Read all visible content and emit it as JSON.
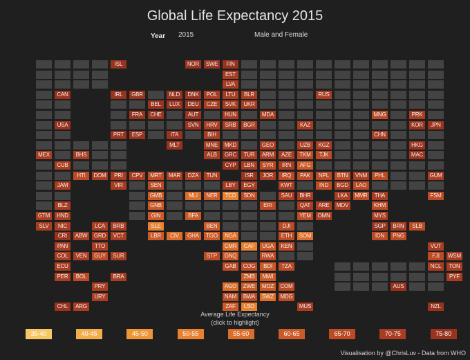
{
  "title": "Global Life Expectancy 2015",
  "filters": {
    "year_label": "Year",
    "year_value": "2015",
    "gender_value": "Male and Female"
  },
  "legend": {
    "title_line1": "Average Life Expectancy",
    "title_line2": "(click to highlight)",
    "items": [
      {
        "label": "35-40",
        "color": "#f7c766"
      },
      {
        "label": "40-45",
        "color": "#f3ad4a"
      },
      {
        "label": "45-50",
        "color": "#ee9536"
      },
      {
        "label": "50-55",
        "color": "#e88130"
      },
      {
        "label": "55-60",
        "color": "#dd6e2a"
      },
      {
        "label": "60-65",
        "color": "#cc5a28"
      },
      {
        "label": "65-70",
        "color": "#bb4a25"
      },
      {
        "label": "70-75",
        "color": "#a93d21"
      },
      {
        "label": "75-80",
        "color": "#9a331d"
      }
    ]
  },
  "credit": "Visualisation by @ChrisLuv - Data from WHO",
  "rows": [
    [
      "",
      "",
      "",
      "",
      "ISL:8",
      "",
      "",
      "",
      "NOR:8",
      "SWE:8",
      "FIN:8",
      "",
      "",
      "",
      "",
      "",
      "",
      "",
      "",
      "",
      "",
      "",
      ""
    ],
    [
      "",
      "",
      "",
      "",
      "",
      "",
      "",
      "",
      "",
      "",
      "EST:7",
      "",
      "",
      "",
      "",
      "",
      "",
      "",
      "",
      "",
      "",
      "",
      ""
    ],
    [
      "",
      "",
      "",
      "",
      "",
      "",
      "",
      "",
      "",
      "",
      "LVA:7",
      "",
      "",
      "",
      "",
      "",
      "",
      "",
      "",
      "",
      "",
      "",
      ""
    ],
    [
      "",
      "CAN:8",
      "",
      "",
      "IRL:8",
      "GBR:8",
      "",
      "NLD:8",
      "DNK:8",
      "POL:7",
      "LTU:7",
      "BLR:7",
      "",
      "",
      "",
      "RUS:7",
      "",
      "",
      "",
      "",
      "",
      "",
      ""
    ],
    [
      "",
      "",
      "",
      "",
      "",
      "",
      "BEL:8",
      "LUX:8",
      "DEU:8",
      "CZE:7",
      "SVK:7",
      "UKR:7",
      "",
      "",
      "",
      "",
      "",
      "",
      "",
      "",
      "",
      "",
      ""
    ],
    [
      "",
      "",
      "",
      "",
      "",
      "FRA:8",
      "CHE:8",
      "",
      "AUT:8",
      "",
      "HUN:7",
      "",
      "MDA:7",
      "",
      "",
      "",
      "",
      "",
      "MNG:6",
      "",
      "PRK:7",
      "",
      ""
    ],
    [
      "",
      "USA:8",
      "",
      "",
      "",
      "",
      "",
      "",
      "SVN:8",
      "HRV:7",
      "SRB:7",
      "BGR:7",
      "",
      "",
      "KAZ:7",
      "",
      "",
      "",
      "",
      "",
      "KOR:8",
      "JPN:8",
      ""
    ],
    [
      "",
      "",
      "",
      "",
      "PRT:8",
      "ESP:8",
      "",
      "ITA:8",
      "",
      "BIH:7",
      "",
      "",
      "",
      "",
      "",
      "",
      "",
      "",
      "CHN:7",
      "",
      "",
      "",
      ""
    ],
    [
      "",
      "",
      "",
      "",
      "",
      "",
      "",
      "MLT:8",
      "",
      "MNE:7",
      "MKD:7",
      "",
      "GEO:7",
      "",
      "UZB:7",
      "KGZ:7",
      "",
      "",
      "",
      "",
      "HKG:8",
      "",
      ""
    ],
    [
      "MEX:7",
      "",
      "BHS:7",
      "",
      "",
      "",
      "",
      "",
      "",
      "ALB:7",
      "GRC:8",
      "TUR:7",
      "ARM:7",
      "AZE:7",
      "TKM:6",
      "TJK:6",
      "",
      "",
      "",
      "",
      "MAC:8",
      "",
      ""
    ],
    [
      "",
      "CUB:7",
      "",
      "",
      "",
      "",
      "",
      "",
      "",
      "",
      "CYP:8",
      "LBN:7",
      "SYR:6",
      "IRN:7",
      "AFG:5",
      "",
      "",
      "",
      "",
      "",
      "",
      "",
      ""
    ],
    [
      "",
      "",
      "HTI:6",
      "DOM:7",
      "PRI:7",
      "CPV:7",
      "MRT:6",
      "MAR:7",
      "DZA:7",
      "TUN:7",
      "",
      "ISR:8",
      "JOR:7",
      "IRQ:6",
      "PAK:6",
      "NPL:6",
      "BTN:6",
      "VNM:7",
      "PHL:6",
      "",
      "",
      "GUM:7",
      ""
    ],
    [
      "",
      "JAM:7",
      "",
      "",
      "VIR:7",
      "",
      "SEN:6",
      "",
      "",
      "",
      "LBY:7",
      "EGY:7",
      "",
      "KWT:7",
      "",
      "IND:6",
      "BGD:7",
      "LAO:6",
      "",
      "",
      "",
      "",
      ""
    ],
    [
      "",
      "",
      "",
      "",
      "",
      "",
      "GMB:5",
      "",
      "MLI:4",
      "NER:5",
      "TCD:3",
      "SDN:6",
      "",
      "SAU:7",
      "BHR:7",
      "",
      "LKA:7",
      "MMR:6",
      "THA:7",
      "",
      "",
      "FSM:6",
      ""
    ],
    [
      "",
      "BLZ:7",
      "",
      "",
      "",
      "",
      "GNB:5",
      "",
      "",
      "",
      "",
      "",
      "ERI:6",
      "",
      "QAT:7",
      "ARE:7",
      "MDV:7",
      "",
      "KHM:6",
      "",
      "",
      "",
      ""
    ],
    [
      "GTM:7",
      "HND:7",
      "",
      "",
      "",
      "",
      "GIN:5",
      "",
      "BFA:5",
      "",
      "",
      "",
      "",
      "",
      "YEM:6",
      "OMN:7",
      "",
      "",
      "MYS:7",
      "",
      "",
      "",
      ""
    ],
    [
      "SLV:7",
      "NIC:7",
      "",
      "LCA:7",
      "BRB:7",
      "",
      "SLE:3",
      "",
      "",
      "BEN:5",
      "",
      "",
      "",
      "DJI:6",
      "",
      "",
      "",
      "",
      "SGP:8",
      "BRN:7",
      "SLB:6",
      "",
      ""
    ],
    [
      "",
      "CRI:8",
      "ABW:7",
      "GRD:7",
      "VCT:7",
      "",
      "LBR:5",
      "CIV:4",
      "GHA:5",
      "TGO:5",
      "NGA:4",
      "",
      "",
      "ETH:6",
      "SOM:4",
      "",
      "",
      "",
      "IDN:6",
      "PNG:6",
      "",
      "",
      ""
    ],
    [
      "",
      "PAN:7",
      "",
      "TTO:7",
      "",
      "",
      "",
      "",
      "",
      "",
      "CMR:4",
      "CAF:3",
      "UGA:5",
      "KEN:6",
      "",
      "",
      "",
      "",
      "",
      "",
      "",
      "VUT:7",
      ""
    ],
    [
      "",
      "COL:7",
      "VEN:7",
      "GUY:6",
      "SUR:7",
      "",
      "",
      "",
      "",
      "STP:6",
      "GNQ:5",
      "",
      "RWA:6",
      "",
      "",
      "",
      "",
      "",
      "",
      "",
      "",
      "FJI:6",
      "WSM:7"
    ],
    [
      "",
      "ECU:7",
      "",
      "",
      "",
      "",
      "",
      "",
      "",
      "",
      "GAB:6",
      "COG:6",
      "BDI:5",
      "TZA:6",
      "",
      "",
      "",
      "",
      "",
      "",
      "",
      "NCL:7",
      "TON:7"
    ],
    [
      "",
      "PER:7",
      "BOL:6",
      "",
      "BRA:7",
      "",
      "",
      "",
      "",
      "",
      "",
      "ZMB:5",
      "MWI:5",
      "",
      "",
      "",
      "",
      "",
      "",
      "",
      "",
      "",
      "PYF:7"
    ],
    [
      "",
      "",
      "",
      "PRY:7",
      "",
      "",
      "",
      "",
      "",
      "",
      "AGO:4",
      "ZWE:5",
      "MOZ:5",
      "COM:6",
      "",
      "",
      "",
      "",
      "",
      "AUS:8",
      "",
      "",
      ""
    ],
    [
      "",
      "",
      "",
      "URY:7",
      "",
      "",
      "",
      "",
      "",
      "",
      "NAM:6",
      "BWA:6",
      "SWZ:4",
      "MDG:6",
      "",
      "",
      "",
      "",
      "",
      "",
      "",
      "",
      ""
    ],
    [
      "",
      "CHL:8",
      "ARG:7",
      "",
      "",
      "",
      "",
      "",
      "",
      "",
      "ZAF:5",
      "LSO:3",
      "",
      "",
      "MUS:7",
      "",
      "",
      "",
      "",
      "",
      "",
      "NZL:8",
      ""
    ]
  ],
  "empty_mask": [
    "1111111000000000000000000",
    "1111111000000000000000000",
    "1111111000000000000000000",
    "1111111000000000000000000",
    "1111111000000000000000000",
    "1111111000000000000000000",
    "1111111000000000000000000",
    "1111111000000000000000000",
    "1111111000000000000000000",
    "1111111000000000000000000",
    "1111111000000000000000000",
    "1111111000000000000000000",
    "1111111000000000000000000",
    "1111111000000000000000000",
    "1111111000000000000000000",
    "1111111000000000000000000",
    "1111111000000000000000000",
    "1111111000000000000000000",
    "1111111000000000000000000",
    "1111111000000000000000000",
    "1111111000000000000000000",
    "1111111000000000000000000",
    "1111111000000000000000000",
    "1111111000000000000000000",
    "1111111000000000000000000"
  ]
}
